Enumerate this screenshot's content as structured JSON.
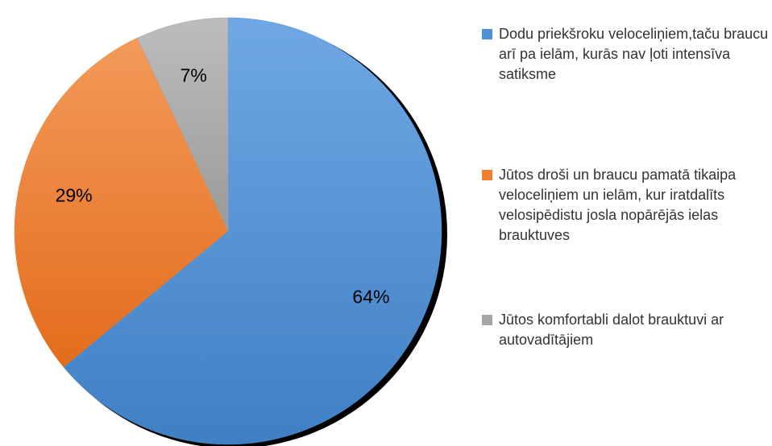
{
  "chart_data": {
    "type": "pie",
    "categories": [
      "Dodu priekšroku veloceliņiem,taču braucu arī pa ielām, kurās nav ļoti intensīva satiksme",
      "Jūtos droši un braucu pamatā tikaipa veloceliņiem un ielām, kur iratdalīts velosipēdistu josla nopārējās ielas brauktuves",
      "Jūtos komfortabli dalot brauktuvi ar autovadītājiem"
    ],
    "values": [
      64,
      29,
      7
    ],
    "value_labels": [
      "64%",
      "29%",
      "7%"
    ],
    "colors": [
      "#4f8fd6",
      "#f07f30",
      "#a5a5a5"
    ]
  }
}
